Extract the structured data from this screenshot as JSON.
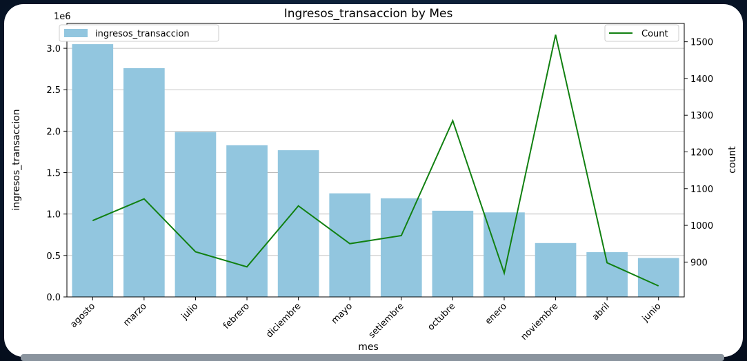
{
  "chart_data": {
    "type": "bar",
    "title": "Ingresos_transaccion by Mes",
    "xlabel": "mes",
    "ylabel": "ingresos_transaccion",
    "y2label": "count",
    "y_offset_label": "1e6",
    "categories": [
      "agosto",
      "marzo",
      "julio",
      "febrero",
      "diciembre",
      "mayo",
      "setiembre",
      "octubre",
      "enero",
      "noviembre",
      "abril",
      "junio"
    ],
    "series": [
      {
        "name": "ingresos_transaccion",
        "type": "bar",
        "axis": "left",
        "color": "#92c6df",
        "values": [
          3.05,
          2.76,
          1.99,
          1.83,
          1.77,
          1.25,
          1.19,
          1.04,
          1.02,
          0.65,
          0.54,
          0.47
        ]
      },
      {
        "name": "Count",
        "type": "line",
        "axis": "right",
        "color": "#118011",
        "values": [
          1013,
          1072,
          928,
          887,
          1053,
          950,
          972,
          1285,
          870,
          1519,
          898,
          835
        ]
      }
    ],
    "ylim": [
      0,
      3.3
    ],
    "y2lim": [
      805,
      1550
    ],
    "yticks": [
      "0.0",
      "0.5",
      "1.0",
      "1.5",
      "2.0",
      "2.5",
      "3.0"
    ],
    "y2ticks": [
      "900",
      "1000",
      "1100",
      "1200",
      "1300",
      "1400",
      "1500"
    ],
    "grid": true,
    "legend_left": "top-left",
    "legend_right": "top-right"
  }
}
